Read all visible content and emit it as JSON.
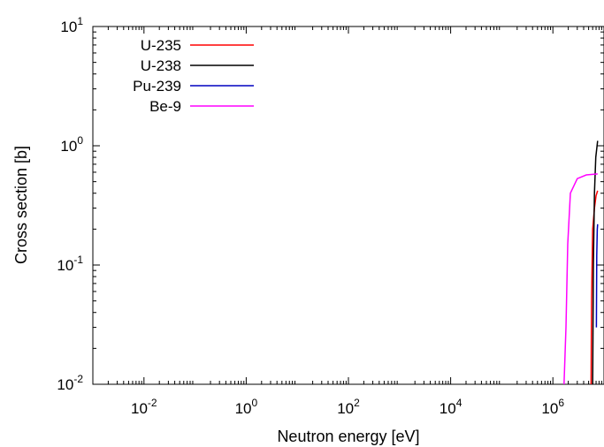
{
  "chart_data": {
    "type": "line",
    "xlabel": "Neutron energy [eV]",
    "ylabel": "Cross section [b]",
    "x_scale": "log",
    "y_scale": "log",
    "xlim": [
      0.001,
      10000000
    ],
    "ylim": [
      0.01,
      10
    ],
    "x_ticks": [
      {
        "base": "10",
        "exp": "-2",
        "value": 0.01
      },
      {
        "base": "10",
        "exp": "0",
        "value": 1
      },
      {
        "base": "10",
        "exp": "2",
        "value": 100
      },
      {
        "base": "10",
        "exp": "4",
        "value": 10000
      },
      {
        "base": "10",
        "exp": "6",
        "value": 1000000
      }
    ],
    "y_ticks": [
      {
        "base": "10",
        "exp": "-2",
        "value": 0.01
      },
      {
        "base": "10",
        "exp": "-1",
        "value": 0.1
      },
      {
        "base": "10",
        "exp": "0",
        "value": 1
      },
      {
        "base": "10",
        "exp": "1",
        "value": 10
      }
    ],
    "grid": false,
    "legend_position": "top-left",
    "series": [
      {
        "name": "U-235",
        "color": "#ff0000",
        "points": [
          [
            5600000,
            0.01
          ],
          [
            5700000,
            0.05
          ],
          [
            6000000,
            0.2
          ],
          [
            6500000,
            0.3
          ],
          [
            7000000,
            0.38
          ],
          [
            7500000,
            0.42
          ]
        ]
      },
      {
        "name": "U-238",
        "color": "#000000",
        "points": [
          [
            6000000,
            0.01
          ],
          [
            6200000,
            0.1
          ],
          [
            6500000,
            0.4
          ],
          [
            6900000,
            0.8
          ],
          [
            7500000,
            1.1
          ]
        ]
      },
      {
        "name": "Pu-239",
        "color": "#0000c0",
        "points": [
          [
            7100000,
            0.03
          ],
          [
            7200000,
            0.12
          ],
          [
            7400000,
            0.2
          ],
          [
            7500000,
            0.22
          ]
        ]
      },
      {
        "name": "Be-9",
        "color": "#ff00ff",
        "points": [
          [
            1650000,
            0.01
          ],
          [
            1800000,
            0.03
          ],
          [
            1950000,
            0.15
          ],
          [
            2200000,
            0.4
          ],
          [
            3000000,
            0.53
          ],
          [
            4500000,
            0.57
          ],
          [
            7500000,
            0.58
          ]
        ]
      }
    ]
  }
}
